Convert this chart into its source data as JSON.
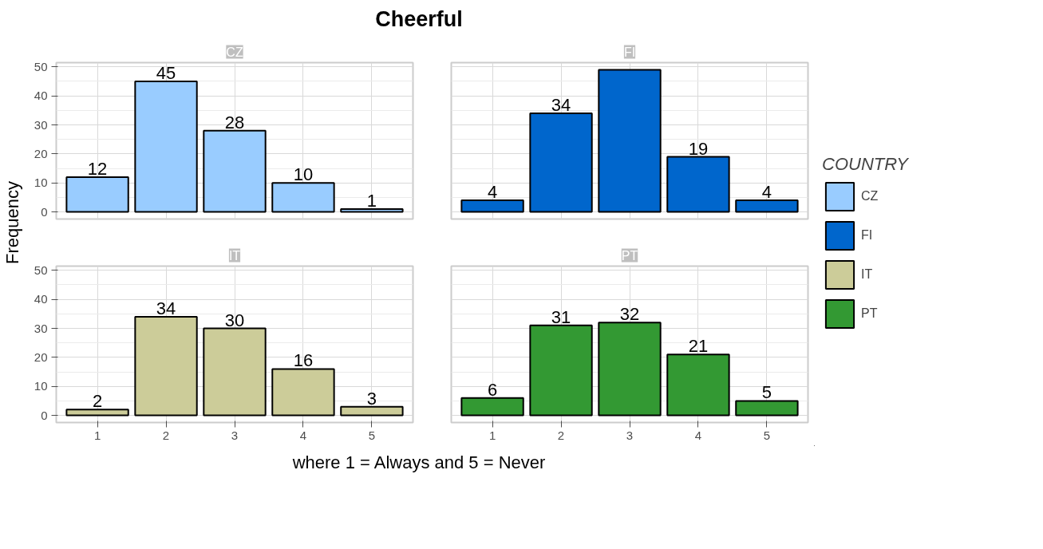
{
  "chart_data": [
    {
      "type": "bar",
      "title": "Cheerful",
      "subtitle": "CZ",
      "ylabel": "Frequency",
      "categories": [
        "1",
        "2",
        "3",
        "4",
        "5"
      ],
      "series": [
        {
          "name": "CZ",
          "color": "#99ccff",
          "values": [
            12,
            45,
            28,
            10,
            1
          ]
        }
      ],
      "data_labels": true,
      "ylim": [
        -2.45,
        51.45
      ],
      "yticks": [
        0,
        10,
        20,
        30,
        40,
        50
      ],
      "grid": true,
      "tick_labels": "y",
      "legend": "right",
      "legend_title": "COUNTRY"
    },
    {
      "type": "bar",
      "subtitle": "FI",
      "categories": [
        "1",
        "2",
        "3",
        "4",
        "5"
      ],
      "series": [
        {
          "name": "FI",
          "color": "#0066cc",
          "values": [
            4,
            34,
            49,
            19,
            4
          ]
        }
      ],
      "value_labels": [
        "4",
        "34",
        null,
        "19",
        "4"
      ],
      "ylim": [
        -2.45,
        51.45
      ],
      "yticks": [
        0,
        10,
        20,
        30,
        40,
        50
      ],
      "grid": true,
      "tick_labels": false
    },
    {
      "type": "bar",
      "subtitle": "IT",
      "categories": [
        "1",
        "2",
        "3",
        "4",
        "5"
      ],
      "series": [
        {
          "name": "IT",
          "color": "#cccc99",
          "values": [
            2,
            34,
            30,
            16,
            3
          ]
        }
      ],
      "data_labels": true,
      "ylim": [
        -2.45,
        51.45
      ],
      "yticks": [
        0,
        10,
        20,
        30,
        40,
        50
      ],
      "grid": true,
      "xlabel": "where 1 = Always and 5 = Never"
    },
    {
      "type": "bar",
      "subtitle": "PT",
      "categories": [
        "1",
        "2",
        "3",
        "4",
        "5"
      ],
      "series": [
        {
          "name": "PT",
          "color": "#339933",
          "values": [
            6,
            31,
            32,
            21,
            5
          ]
        }
      ],
      "data_labels": true,
      "ylim": [
        -2.45,
        51.45
      ],
      "yticks": [
        0,
        10,
        20,
        30,
        40,
        50
      ],
      "grid": true,
      "tick_labels": "x"
    }
  ]
}
